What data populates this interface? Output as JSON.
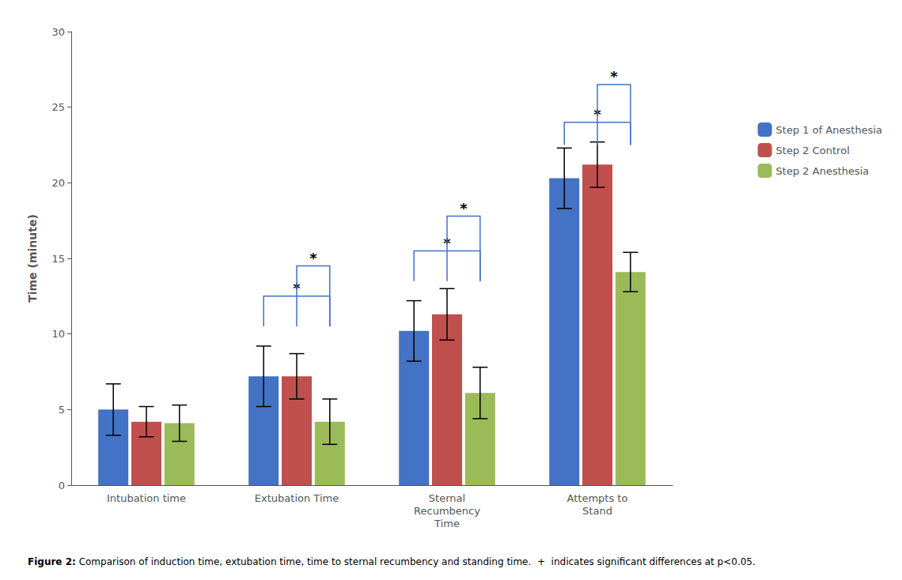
{
  "chart_data": {
    "type": "bar",
    "categories": [
      "Intubation time",
      "Extubation Time",
      "Sternal\nRecumbency\nTime",
      "Attempts to\nStand"
    ],
    "series": [
      {
        "name": "Step 1 of Anesthesia",
        "color": "#4472C4",
        "values": [
          5.0,
          7.2,
          10.2,
          20.3
        ],
        "errors": [
          1.7,
          2.0,
          2.0,
          2.0
        ]
      },
      {
        "name": "Step 2 Control",
        "color": "#C0504D",
        "values": [
          4.2,
          7.2,
          11.3,
          21.2
        ],
        "errors": [
          1.0,
          1.5,
          1.7,
          1.5
        ]
      },
      {
        "name": "Step 2 Anesthesia",
        "color": "#9BBB59",
        "values": [
          4.1,
          4.2,
          6.1,
          14.1
        ],
        "errors": [
          1.2,
          1.5,
          1.7,
          1.3
        ]
      }
    ],
    "ylabel": "Time (minute)",
    "ylim": [
      0,
      30
    ],
    "yticks": [
      0,
      5,
      10,
      15,
      20,
      25,
      30
    ],
    "grid": false,
    "legend": "right",
    "caption": {
      "bold": "Figure 2:",
      "text": " Comparison of induction time, extubation time, time to sternal recumbency and standing time.  +  indicates significant differences at p<0.05."
    },
    "brackets": [
      {
        "category": "Extubation Time",
        "from": "Step 1 of Anesthesia",
        "to": "Step 2 Anesthesia",
        "y_base": 10.5,
        "y_top": 12.5,
        "label": "*",
        "color": "#4472C4"
      },
      {
        "category": "Extubation Time",
        "from": "Step 2 Control",
        "to": "Step 2 Anesthesia",
        "y_base": 10.5,
        "y_top": 14.5,
        "label": "*",
        "color": "#4472C4"
      },
      {
        "category": "Sternal\nRecumbency\nTime",
        "from": "Step 1 of Anesthesia",
        "to": "Step 2 Anesthesia",
        "y_base": 13.5,
        "y_top": 15.5,
        "label": "*",
        "color": "#4472C4"
      },
      {
        "category": "Sternal\nRecumbency\nTime",
        "from": "Step 2 Control",
        "to": "Step 2 Anesthesia",
        "y_base": 13.5,
        "y_top": 17.8,
        "label": "*",
        "color": "#4472C4"
      },
      {
        "category": "Attempts to\nStand",
        "from": "Step 1 of Anesthesia",
        "to": "Step 2 Anesthesia",
        "y_base": 22.5,
        "y_top": 24.0,
        "label": "*",
        "color": "#4472C4"
      },
      {
        "category": "Attempts to\nStand",
        "from": "Step 2 Control",
        "to": "Step 2 Anesthesia",
        "y_base": 22.5,
        "y_top": 26.5,
        "label": "*",
        "color": "#4472C4"
      }
    ]
  }
}
